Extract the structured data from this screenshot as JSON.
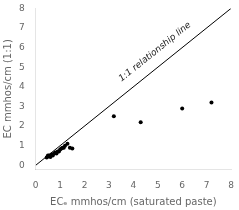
{
  "chart_data": {
    "type": "scatter",
    "xlabel": "ECₑ mmhos/cm (saturated paste)",
    "ylabel": "EC mmhos/cm (1:1)",
    "xlim": [
      0,
      8
    ],
    "ylim": [
      -0.2,
      8
    ],
    "xticks": [
      0,
      1,
      2,
      3,
      4,
      5,
      6,
      7,
      8
    ],
    "yticks": [
      0,
      1,
      2,
      3,
      4,
      5,
      6,
      7,
      8
    ],
    "grid": false,
    "series": [
      {
        "type": "line",
        "color": "#000000",
        "x": [
          0.0,
          8.0
        ],
        "values": [
          0.0,
          8.0
        ]
      },
      {
        "type": "scatter",
        "color": "#000000",
        "x": [
          0.45,
          0.5,
          0.5,
          0.55,
          0.6,
          0.65,
          0.7,
          0.75,
          0.8,
          0.85,
          0.9,
          0.95,
          1.0,
          1.05,
          1.1,
          1.15,
          1.2,
          1.3,
          1.4,
          1.5,
          3.2,
          4.3,
          6.0,
          7.2
        ],
        "values": [
          0.4,
          0.45,
          0.5,
          0.5,
          0.42,
          0.55,
          0.5,
          0.6,
          0.65,
          0.6,
          0.7,
          0.7,
          0.8,
          0.85,
          0.9,
          0.9,
          1.0,
          1.1,
          0.9,
          0.85,
          2.5,
          2.2,
          2.9,
          3.2
        ]
      }
    ],
    "annotations": [
      {
        "text": "1:1 relationship line",
        "x": 5.0,
        "y": 5.6
      }
    ]
  }
}
